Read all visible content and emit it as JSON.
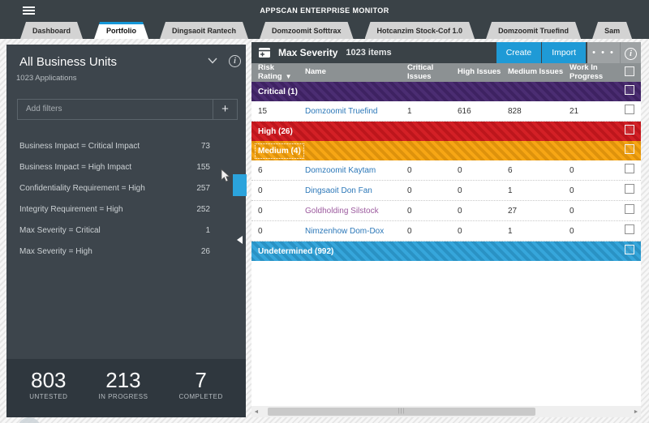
{
  "header": {
    "title": "APPSCAN ENTERPRISE MONITOR"
  },
  "tabs": [
    {
      "label": "Dashboard",
      "active": false
    },
    {
      "label": "Portfolio",
      "active": true
    },
    {
      "label": "Dingsaoit Rantech",
      "active": false
    },
    {
      "label": "Domzoomit Softtrax",
      "active": false
    },
    {
      "label": "Hotcanzim Stock-Cof 1.0",
      "active": false
    },
    {
      "label": "Domzoomit Truefind",
      "active": false
    },
    {
      "label": "Sam",
      "active": false
    }
  ],
  "sidebar": {
    "title": "All Business Units",
    "subtitle": "1023 Applications",
    "filter_placeholder": "Add filters",
    "add_button": "+",
    "filters": [
      {
        "label": "Business Impact = Critical Impact",
        "count": "73"
      },
      {
        "label": "Business Impact = High Impact",
        "count": "155"
      },
      {
        "label": "Confidentiality Requirement = High",
        "count": "257"
      },
      {
        "label": "Integrity Requirement = High",
        "count": "252"
      },
      {
        "label": "Max Severity = Critical",
        "count": "1"
      },
      {
        "label": "Max Severity = High",
        "count": "26"
      }
    ],
    "stats": [
      {
        "value": "803",
        "label": "UNTESTED"
      },
      {
        "value": "213",
        "label": "IN PROGRESS"
      },
      {
        "value": "7",
        "label": "COMPLETED"
      }
    ]
  },
  "panel": {
    "toolbar": {
      "title": "Max Severity",
      "items_count": "1023 items",
      "create_label": "Create",
      "import_label": "Import",
      "more_label": "• • •"
    },
    "table": {
      "columns": [
        "Risk Rating",
        "Name",
        "Critical Issues",
        "High Issues",
        "Medium Issues",
        "Work In Progress"
      ],
      "groups": [
        {
          "label": "Critical (1)",
          "color": "#45266d",
          "focused": false,
          "rows": [
            {
              "risk": "15",
              "name": "Domzoomit Truefind",
              "critical": "1",
              "high": "616",
              "medium": "828",
              "wip": "21",
              "visited": false
            }
          ]
        },
        {
          "label": "High (26)",
          "color": "#d2191f",
          "focused": false,
          "rows": []
        },
        {
          "label": "Medium (4)",
          "color": "#f7a30d",
          "focused": true,
          "rows": [
            {
              "risk": "6",
              "name": "Domzoomit Kaytam",
              "critical": "0",
              "high": "0",
              "medium": "6",
              "wip": "0",
              "visited": false
            },
            {
              "risk": "0",
              "name": "Dingsaoit Don Fan",
              "critical": "0",
              "high": "0",
              "medium": "1",
              "wip": "0",
              "visited": false
            },
            {
              "risk": "0",
              "name": "Goldholding Silstock",
              "critical": "0",
              "high": "0",
              "medium": "27",
              "wip": "0",
              "visited": true
            },
            {
              "risk": "0",
              "name": "Nimzenhow Dom-Dox",
              "critical": "0",
              "high": "0",
              "medium": "1",
              "wip": "0",
              "visited": false
            }
          ]
        },
        {
          "label": "Undetermined (992)",
          "color": "#2fa3da",
          "focused": false,
          "rows": []
        }
      ]
    }
  },
  "colors": {
    "accent_blue": "#1f9ad6",
    "link_blue": "#2b77b8",
    "link_visited": "#9c5a9e",
    "critical_purple": "#45266d",
    "high_red": "#d2191f",
    "medium_orange": "#f7a30d",
    "undetermined_blue": "#2fa3da"
  }
}
